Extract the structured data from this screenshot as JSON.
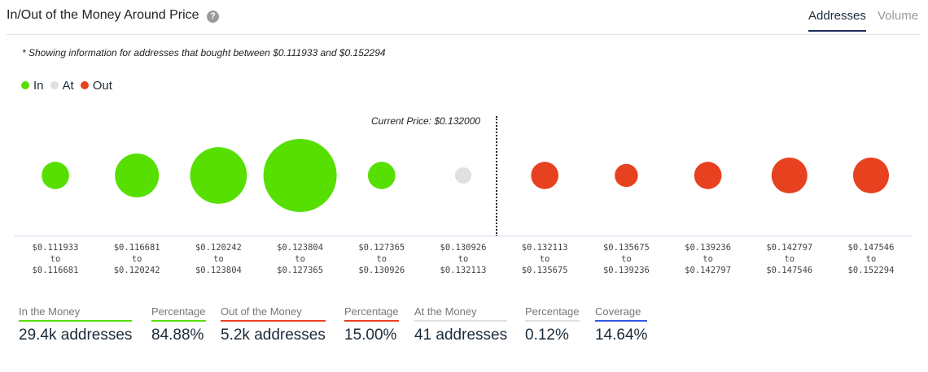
{
  "header": {
    "title": "In/Out of the Money Around Price",
    "help_icon": "?",
    "tabs": [
      "Addresses",
      "Volume"
    ]
  },
  "note": "* Showing information for addresses that bought between $0.111933 and $0.152294",
  "legend": [
    {
      "label": "In",
      "color": "#56df00"
    },
    {
      "label": "At",
      "color": "#e0e0e0"
    },
    {
      "label": "Out",
      "color": "#e8411f"
    }
  ],
  "current_price": "Current Price: $0.132000",
  "chart_data": {
    "type": "bubble",
    "title": "In/Out of the Money Around Price",
    "current_price": 0.132,
    "buckets": [
      {
        "from": "$0.111933",
        "to": "$0.116681",
        "status": "In",
        "relative_size": 0.14
      },
      {
        "from": "$0.116681",
        "to": "$0.120242",
        "status": "In",
        "relative_size": 0.36
      },
      {
        "from": "$0.120242",
        "to": "$0.123804",
        "status": "In",
        "relative_size": 0.6
      },
      {
        "from": "$0.123804",
        "to": "$0.127365",
        "status": "In",
        "relative_size": 1.0
      },
      {
        "from": "$0.127365",
        "to": "$0.130926",
        "status": "In",
        "relative_size": 0.14
      },
      {
        "from": "$0.130926",
        "to": "$0.132113",
        "status": "At",
        "relative_size": 0.05
      },
      {
        "from": "$0.132113",
        "to": "$0.135675",
        "status": "Out",
        "relative_size": 0.14
      },
      {
        "from": "$0.135675",
        "to": "$0.139236",
        "status": "Out",
        "relative_size": 0.1
      },
      {
        "from": "$0.139236",
        "to": "$0.142797",
        "status": "Out",
        "relative_size": 0.14
      },
      {
        "from": "$0.142797",
        "to": "$0.147546",
        "status": "Out",
        "relative_size": 0.24
      },
      {
        "from": "$0.147546",
        "to": "$0.152294",
        "status": "Out",
        "relative_size": 0.24
      }
    ],
    "to_word": "to"
  },
  "stats": [
    {
      "label": "In the Money",
      "value": "29.4k addresses",
      "color": "#56df00"
    },
    {
      "label": "Percentage",
      "value": "84.88%",
      "color": "#56df00"
    },
    {
      "label": "Out of the Money",
      "value": "5.2k addresses",
      "color": "#e8411f"
    },
    {
      "label": "Percentage",
      "value": "15.00%",
      "color": "#e8411f"
    },
    {
      "label": "At the Money",
      "value": "41 addresses",
      "color": "#e0e0e0"
    },
    {
      "label": "Percentage",
      "value": "0.12%",
      "color": "#e0e0e0"
    },
    {
      "label": "Coverage",
      "value": "14.64%",
      "color": "#3358e0"
    }
  ]
}
